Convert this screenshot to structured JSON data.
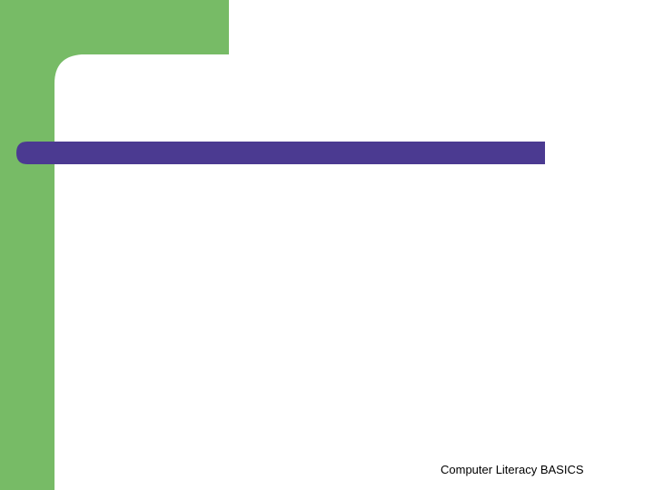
{
  "footer": {
    "text": "Computer Literacy BASICS"
  }
}
